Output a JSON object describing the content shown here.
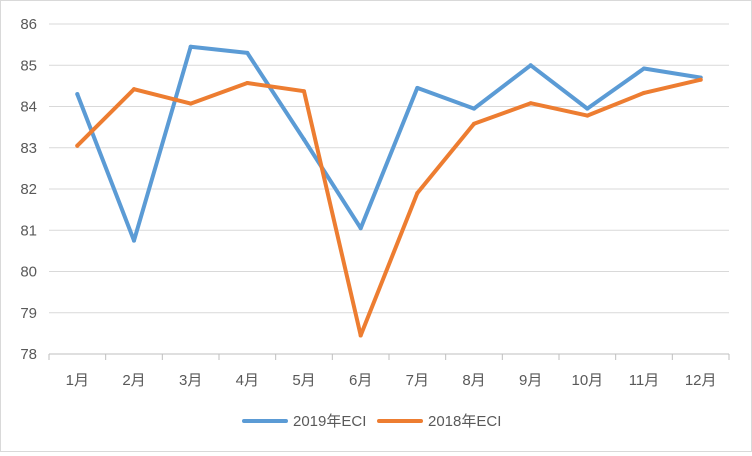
{
  "chart_data": {
    "type": "line",
    "title": "",
    "xlabel": "",
    "ylabel": "",
    "categories": [
      "1月",
      "2月",
      "3月",
      "4月",
      "5月",
      "6月",
      "7月",
      "8月",
      "9月",
      "10月",
      "11月",
      "12月"
    ],
    "ylim": [
      78,
      86
    ],
    "yticks": [
      78,
      79,
      80,
      81,
      82,
      83,
      84,
      85,
      86
    ],
    "grid": true,
    "legend_position": "bottom",
    "series": [
      {
        "name": "2019年ECI",
        "color": "#5B9BD5",
        "values": [
          84.3,
          80.75,
          85.45,
          85.3,
          83.2,
          81.05,
          84.45,
          83.95,
          85.0,
          83.95,
          84.92,
          84.7
        ]
      },
      {
        "name": "2018年ECI",
        "color": "#ED7D31",
        "values": [
          83.05,
          84.42,
          84.07,
          84.57,
          84.37,
          78.45,
          81.9,
          83.58,
          84.08,
          83.78,
          84.33,
          84.65
        ]
      }
    ]
  }
}
